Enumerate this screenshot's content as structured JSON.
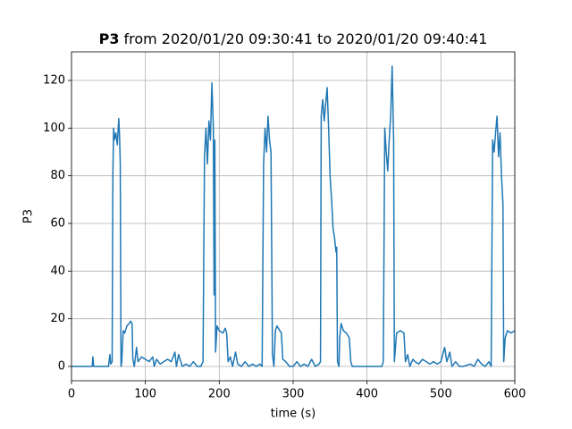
{
  "chart_data": {
    "type": "line",
    "title_bold": "P3",
    "title": "from 2020/01/20 09:30:41 to 2020/01/20 09:40:41",
    "xlabel": "time (s)",
    "ylabel": "P3",
    "x": [
      0,
      28,
      29,
      30,
      50,
      52,
      53,
      55,
      56,
      57,
      58,
      60,
      62,
      64,
      65,
      66,
      67,
      68,
      70,
      72,
      75,
      78,
      80,
      82,
      83,
      85,
      88,
      90,
      95,
      100,
      105,
      110,
      112,
      115,
      120,
      125,
      130,
      135,
      140,
      142,
      145,
      150,
      155,
      160,
      165,
      170,
      175,
      178,
      180,
      182,
      184,
      186,
      188,
      190,
      192,
      193,
      194,
      195,
      197,
      200,
      205,
      208,
      210,
      212,
      215,
      218,
      222,
      225,
      230,
      235,
      240,
      245,
      250,
      255,
      258,
      260,
      262,
      264,
      266,
      268,
      270,
      272,
      274,
      276,
      278,
      280,
      284,
      286,
      290,
      295,
      300,
      305,
      310,
      315,
      320,
      325,
      330,
      335,
      337,
      338,
      340,
      342,
      344,
      346,
      348,
      350,
      352,
      354,
      356,
      358,
      359,
      360,
      362,
      363,
      365,
      368,
      372,
      376,
      378,
      380,
      390,
      400,
      410,
      420,
      422,
      424,
      426,
      428,
      430,
      432,
      434,
      436,
      437,
      440,
      445,
      450,
      452,
      455,
      458,
      462,
      465,
      470,
      475,
      480,
      485,
      490,
      495,
      500,
      505,
      508,
      512,
      515,
      520,
      525,
      530,
      540,
      545,
      550,
      555,
      560,
      565,
      568,
      570,
      572,
      574,
      576,
      578,
      580,
      582,
      584,
      585,
      587,
      590,
      595,
      600
    ],
    "values": [
      0,
      0,
      4,
      0,
      0,
      5,
      1,
      2,
      80,
      100,
      95,
      98,
      93,
      104,
      97,
      85,
      0,
      2,
      15,
      14,
      17,
      18,
      19,
      18,
      3,
      0,
      8,
      2,
      4,
      3,
      2,
      4,
      0,
      3,
      1,
      2,
      3,
      2,
      6,
      0,
      5,
      0,
      1,
      0,
      2,
      0,
      0,
      2,
      88,
      100,
      85,
      103,
      95,
      119,
      100,
      30,
      95,
      6,
      17,
      15,
      14,
      16,
      14,
      2,
      4,
      0,
      6,
      1,
      0,
      2,
      0,
      1,
      0,
      1,
      0,
      85,
      100,
      90,
      105,
      95,
      90,
      5,
      0,
      15,
      17,
      16,
      14,
      3,
      2,
      0,
      0,
      2,
      0,
      1,
      0,
      3,
      0,
      1,
      2,
      105,
      112,
      103,
      110,
      117,
      100,
      80,
      70,
      58,
      54,
      48,
      50,
      2,
      0,
      12,
      18,
      15,
      14,
      12,
      2,
      0,
      0,
      0,
      0,
      0,
      2,
      100,
      90,
      82,
      95,
      105,
      126,
      95,
      2,
      14,
      15,
      14,
      2,
      5,
      0,
      3,
      2,
      1,
      3,
      2,
      1,
      2,
      1,
      2,
      8,
      2,
      6,
      0,
      2,
      0,
      0,
      1,
      0,
      3,
      1,
      0,
      2,
      0,
      95,
      90,
      98,
      105,
      88,
      98,
      80,
      68,
      2,
      12,
      15,
      14,
      15
    ],
    "color": "#1f77b4",
    "xlim": [
      0,
      600
    ],
    "xticks": [
      0,
      100,
      200,
      300,
      400,
      500,
      600
    ],
    "ylim": [
      -6,
      132
    ],
    "yticks": [
      0,
      20,
      40,
      60,
      80,
      100,
      120
    ],
    "grid": true
  }
}
